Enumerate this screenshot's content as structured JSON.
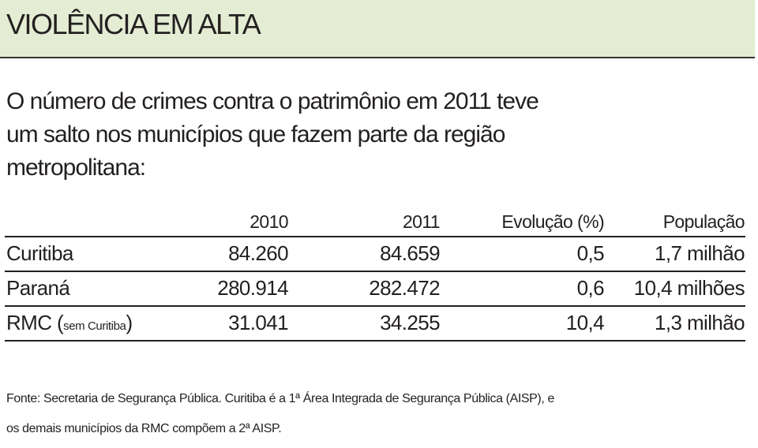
{
  "header": {
    "title": "VIOLÊNCIA EM ALTA"
  },
  "intro": [
    "O número de crimes contra o patrimônio em 2011 teve",
    "um salto nos municípios que fazem parte da região",
    "metropolitana:"
  ],
  "table": {
    "columns": [
      "2010",
      "2011",
      "Evolução (%)",
      "População"
    ],
    "rows": [
      {
        "label": [
          "Curitiba"
        ],
        "cells": [
          "84.260",
          "84.659",
          "0,5",
          "1,7 milhão"
        ]
      },
      {
        "label": [
          "Paraná"
        ],
        "cells": [
          "280.914",
          "282.472",
          "0,6",
          "10,4 milhões"
        ]
      },
      {
        "label": [
          "RMC (",
          "sem Curitiba",
          ")"
        ],
        "cells": [
          "31.041",
          "34.255",
          "10,4",
          "1,3 milhão"
        ]
      }
    ]
  },
  "footnote": [
    "Fonte: Secretaria de Segurança Pública. Curitiba é a 1ª Área Integrada de Segurança Pública (AISP), e",
    "os demais municípios da RMC compõem a 2ª AISP."
  ]
}
